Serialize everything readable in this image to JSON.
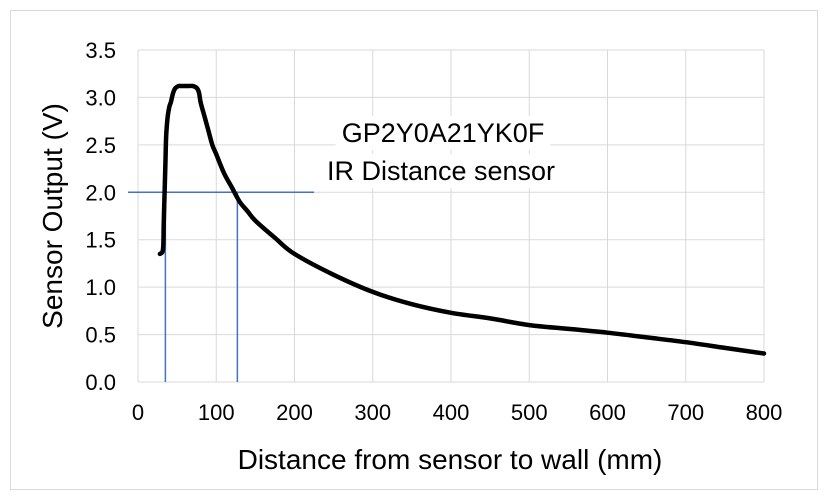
{
  "chart_data": {
    "type": "line",
    "title": "",
    "annotation": [
      "GP2Y0A21YK0F",
      "IR Distance sensor"
    ],
    "xlabel": "Distance from sensor to wall (mm)",
    "ylabel": "Sensor Output (V)",
    "xlim": [
      0,
      800
    ],
    "ylim": [
      0,
      3.5
    ],
    "xticks": [
      0,
      100,
      200,
      300,
      400,
      500,
      600,
      700,
      800
    ],
    "yticks": [
      "0.0",
      "0.5",
      "1.0",
      "1.5",
      "2.0",
      "2.5",
      "3.0",
      "3.5"
    ],
    "grid": true,
    "legend": "none",
    "colors": {
      "curve": "#000000",
      "reference": "#4472c4",
      "grid": "#d9d9d9"
    },
    "series": [
      {
        "x": [
          28,
          32,
          33,
          35,
          36,
          38,
          40,
          42,
          45,
          48,
          52,
          55,
          60,
          65,
          70,
          75,
          78,
          80,
          85,
          90,
          95,
          100,
          110,
          120,
          130,
          140,
          150,
          175,
          200,
          250,
          300,
          350,
          400,
          450,
          500,
          550,
          600,
          650,
          700,
          750,
          800
        ],
        "y": [
          1.35,
          1.4,
          1.7,
          2.3,
          2.6,
          2.8,
          2.9,
          2.95,
          3.05,
          3.1,
          3.12,
          3.12,
          3.12,
          3.12,
          3.12,
          3.1,
          3.05,
          2.95,
          2.8,
          2.65,
          2.5,
          2.4,
          2.2,
          2.05,
          1.9,
          1.8,
          1.7,
          1.52,
          1.35,
          1.13,
          0.95,
          0.82,
          0.73,
          0.67,
          0.6,
          0.56,
          0.52,
          0.47,
          0.42,
          0.36,
          0.3
        ]
      }
    ],
    "reference_lines": {
      "y": 2.0,
      "x_end": 225,
      "x_drops": [
        35,
        127
      ]
    }
  }
}
